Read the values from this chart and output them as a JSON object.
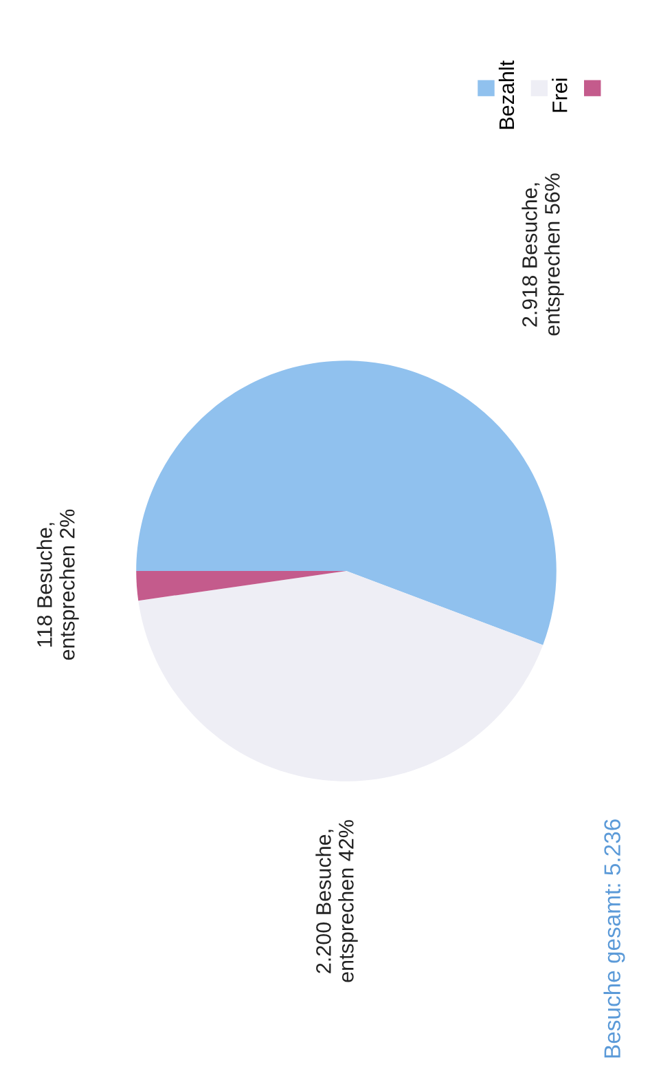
{
  "chart_data": {
    "type": "pie",
    "categories": [
      "Bezahlt",
      "Frei",
      null
    ],
    "values": [
      2918,
      2200,
      118
    ],
    "colors": [
      "#90c1ee",
      "#eeeef5",
      "#c45b8c"
    ],
    "value_labels": [
      "2.918 Besuche,\nentsprechen 56%",
      "2.200 Besuche,\nentsprechen 42%",
      "118 Besuche,\nentsprechen 2%"
    ],
    "legend": "top right",
    "annotations": [
      "Besuche gesamt: 5.236"
    ]
  }
}
